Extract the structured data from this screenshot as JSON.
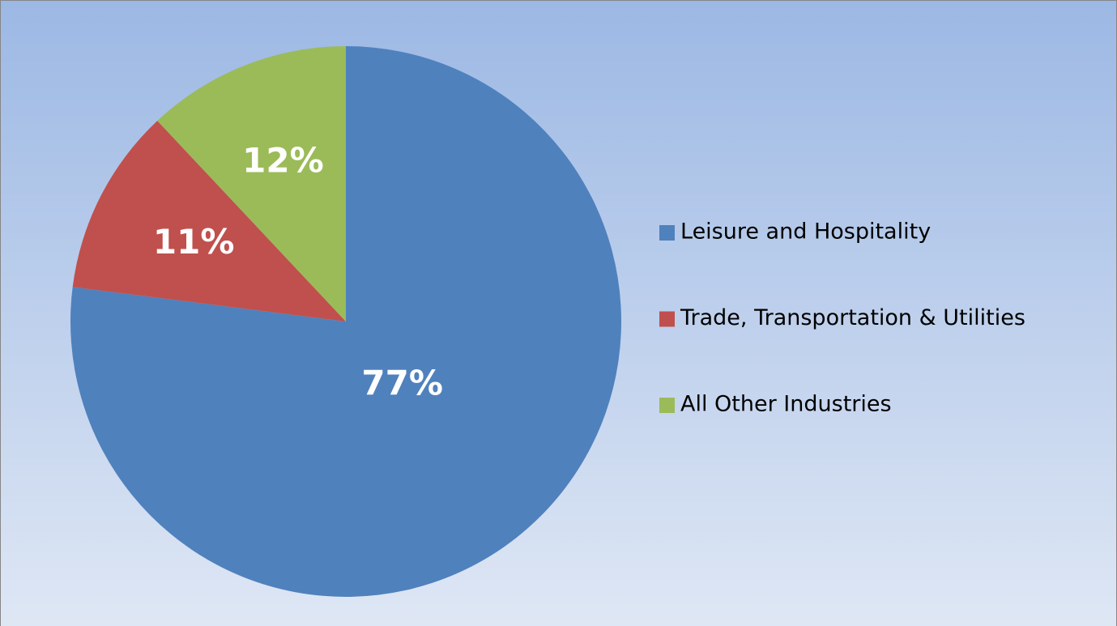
{
  "chart_data": {
    "type": "pie",
    "categories": [
      "Leisure and Hospitality",
      "Trade, Transportation & Utilities",
      "All Other Industries"
    ],
    "values": [
      77,
      11,
      12
    ],
    "value_labels": [
      "77%",
      "11%",
      "12%"
    ],
    "colors": [
      "#4f81bd",
      "#c0504d",
      "#9bbb59"
    ],
    "legend": "right"
  }
}
